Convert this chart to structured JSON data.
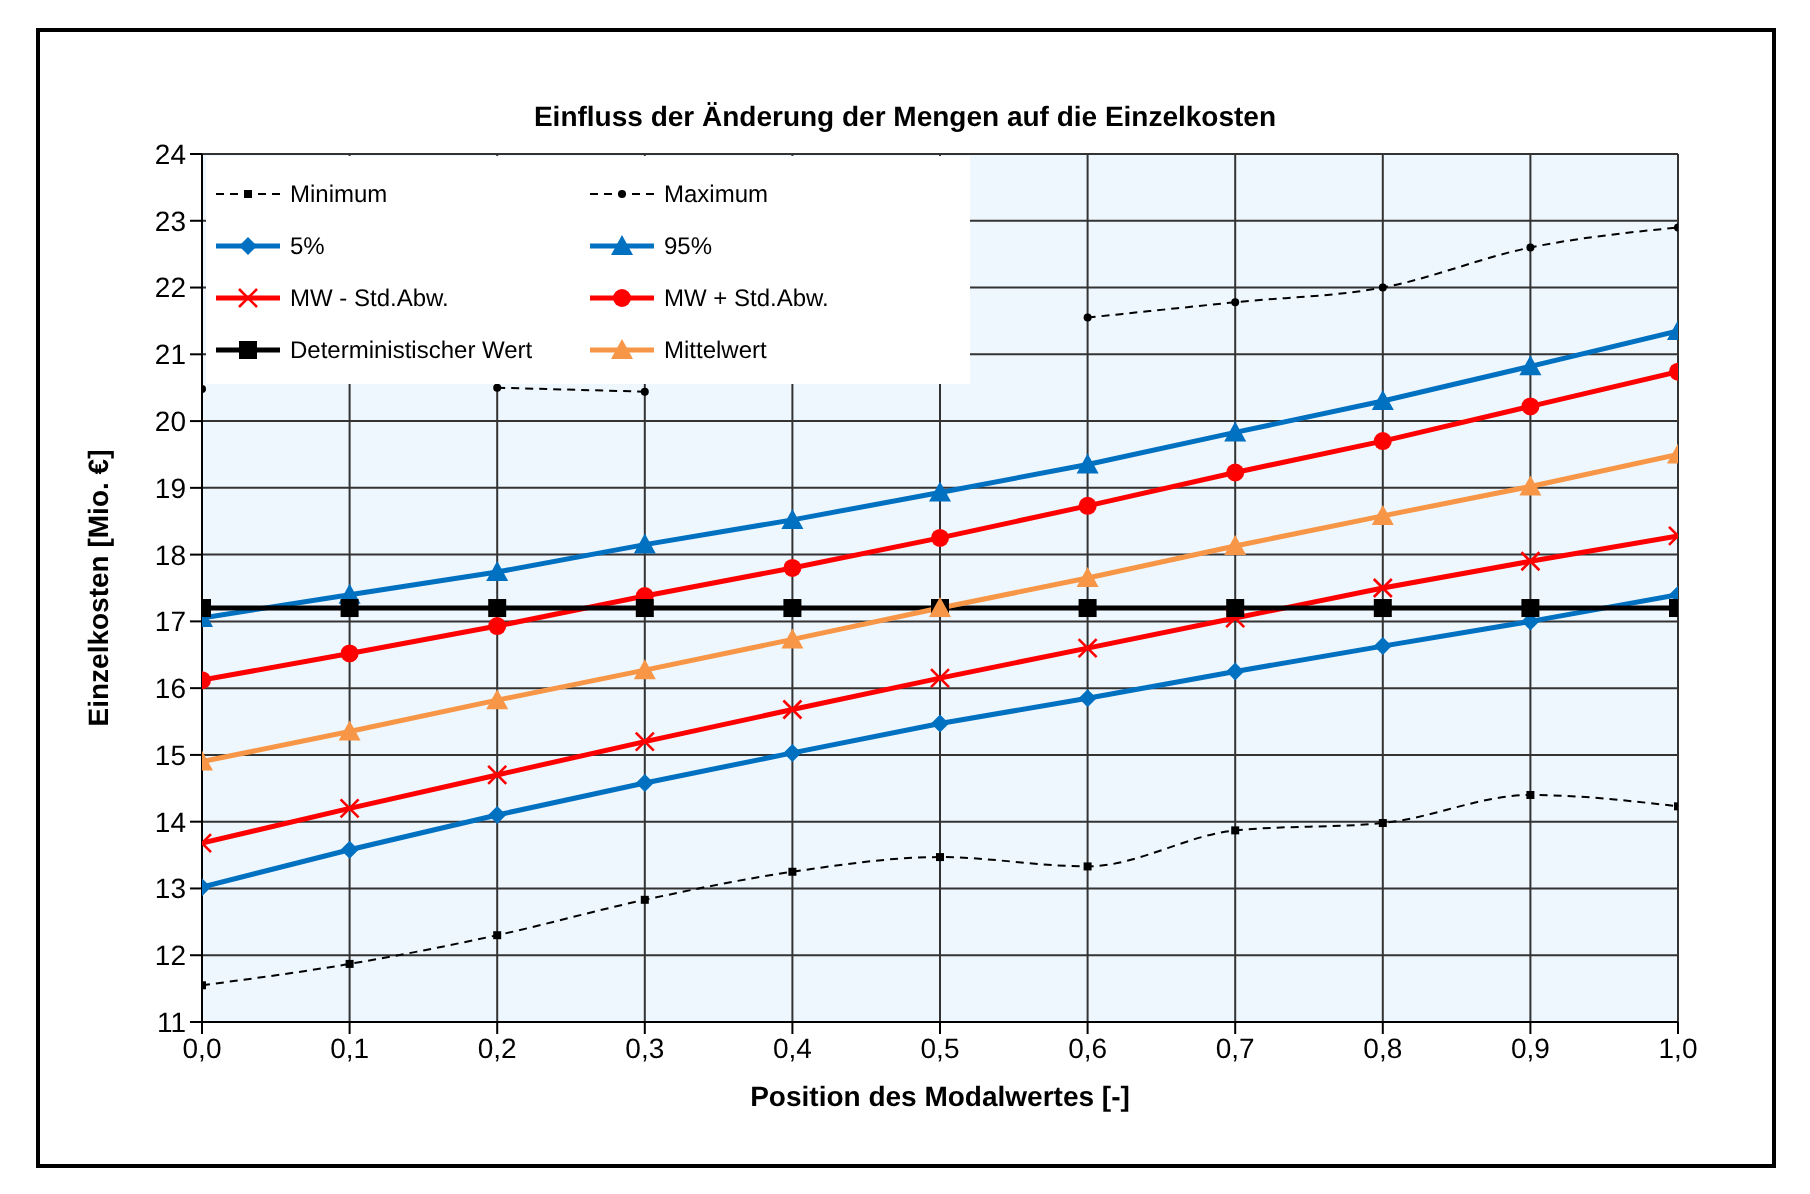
{
  "chart_data": {
    "type": "line",
    "title": "Einfluss der Änderung der Mengen auf die Einzelkosten",
    "xlabel": "Position des Modalwertes [-]",
    "ylabel": "Einzelkosten [Mio. €]",
    "x": [
      0,
      0.1,
      0.2,
      0.3,
      0.4,
      0.5,
      0.6,
      0.7,
      0.8,
      0.9,
      1.0
    ],
    "xlim": [
      0,
      1
    ],
    "xticks": [
      {
        "value": 0,
        "label": "0,0"
      },
      {
        "value": 0.1,
        "label": "0,1"
      },
      {
        "value": 0.2,
        "label": "0,2"
      },
      {
        "value": 0.3,
        "label": "0,3"
      },
      {
        "value": 0.4,
        "label": "0,4"
      },
      {
        "value": 0.5,
        "label": "0,5"
      },
      {
        "value": 0.6,
        "label": "0,6"
      },
      {
        "value": 0.7,
        "label": "0,7"
      },
      {
        "value": 0.8,
        "label": "0,8"
      },
      {
        "value": 0.9,
        "label": "0,9"
      },
      {
        "value": 1,
        "label": "1,0"
      }
    ],
    "ylim": [
      11,
      24
    ],
    "yticks": [
      11,
      12,
      13,
      14,
      15,
      16,
      17,
      18,
      19,
      20,
      21,
      22,
      23,
      24
    ],
    "grid": true,
    "legend": "top left",
    "series": [
      {
        "name": "Minimum",
        "color": "#000000",
        "marker": "square",
        "line_style": "dashed",
        "values": [
          11.55,
          11.87,
          12.3,
          12.83,
          13.25,
          13.47,
          13.33,
          13.87,
          13.98,
          14.4,
          14.23
        ]
      },
      {
        "name": "Maximum",
        "color": "#000000",
        "marker": "circle",
        "line_style": "dashed",
        "values": [
          20.48,
          null,
          20.5,
          20.44,
          null,
          null,
          21.55,
          21.78,
          22.0,
          22.6,
          22.9
        ]
      },
      {
        "name": "5%",
        "color": "#0070c0",
        "marker": "diamond",
        "line_style": "solid",
        "values": [
          13.02,
          13.58,
          14.1,
          14.58,
          15.03,
          15.47,
          15.85,
          16.25,
          16.63,
          17.0,
          17.4
        ]
      },
      {
        "name": "95%",
        "color": "#0070c0",
        "marker": "triangle",
        "line_style": "solid",
        "values": [
          17.05,
          17.4,
          17.74,
          18.15,
          18.52,
          18.93,
          19.35,
          19.83,
          20.3,
          20.82,
          21.35
        ]
      },
      {
        "name": "MW - Std.Abw.",
        "color": "#ff0000",
        "marker": "cross",
        "line_style": "solid",
        "values": [
          13.68,
          14.2,
          14.7,
          15.2,
          15.68,
          16.15,
          16.6,
          17.05,
          17.5,
          17.9,
          18.28
        ]
      },
      {
        "name": "MW + Std.Abw.",
        "color": "#ff0000",
        "marker": "circle",
        "line_style": "solid",
        "values": [
          16.12,
          16.52,
          16.93,
          17.38,
          17.8,
          18.25,
          18.73,
          19.23,
          19.7,
          20.22,
          20.74
        ]
      },
      {
        "name": "Deterministischer Wert",
        "color": "#000000",
        "marker": "square",
        "line_style": "solid",
        "values": [
          17.2,
          17.2,
          17.2,
          17.2,
          17.2,
          17.2,
          17.2,
          17.2,
          17.2,
          17.2,
          17.2
        ]
      },
      {
        "name": "Mittelwert",
        "color": "#f79646",
        "marker": "triangle",
        "line_style": "solid",
        "values": [
          14.9,
          15.35,
          15.82,
          16.27,
          16.73,
          17.2,
          17.65,
          18.13,
          18.58,
          19.02,
          19.5
        ]
      }
    ]
  }
}
